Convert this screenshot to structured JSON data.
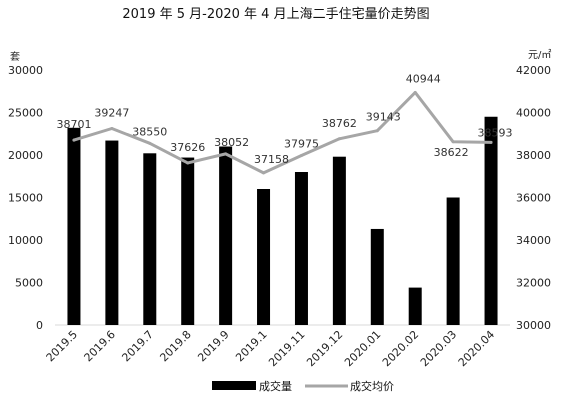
{
  "chart_data": {
    "type": "bar",
    "title": "2019 年 5 月-2020 年 4 月上海二手住宅量价走势图",
    "categories": [
      "2019.5",
      "2019.6",
      "2019.7",
      "2019.8",
      "2019.9",
      "2019.1",
      "2019.11",
      "2019.12",
      "2020.01",
      "2020.02",
      "2020.03",
      "2020.04"
    ],
    "y_left": {
      "label": "套",
      "ylim": [
        0,
        30000
      ],
      "ticks": [
        0,
        5000,
        10000,
        15000,
        20000,
        25000,
        30000
      ]
    },
    "y_right": {
      "label": "元/㎡",
      "ylim": [
        30000,
        42000
      ],
      "ticks": [
        30000,
        32000,
        34000,
        36000,
        38000,
        40000,
        42000
      ]
    },
    "series": [
      {
        "name": "成交量",
        "kind": "bar",
        "axis": "left",
        "color": "#000000",
        "values": [
          23200,
          21700,
          20200,
          19700,
          21000,
          16000,
          18000,
          19800,
          11300,
          4400,
          15000,
          24500
        ]
      },
      {
        "name": "成交均价",
        "kind": "line",
        "axis": "right",
        "color": "#a6a6a6",
        "values": [
          38701,
          39247,
          38550,
          37626,
          38052,
          37158,
          37975,
          38762,
          39143,
          40944,
          38622,
          38593
        ],
        "labels": [
          "38701",
          "39247",
          "38550",
          "37626",
          "38052",
          "37158",
          "37975",
          "38762",
          "39143",
          "40944",
          "38622",
          "38593"
        ]
      }
    ],
    "grid": false,
    "legend": "bottom"
  }
}
